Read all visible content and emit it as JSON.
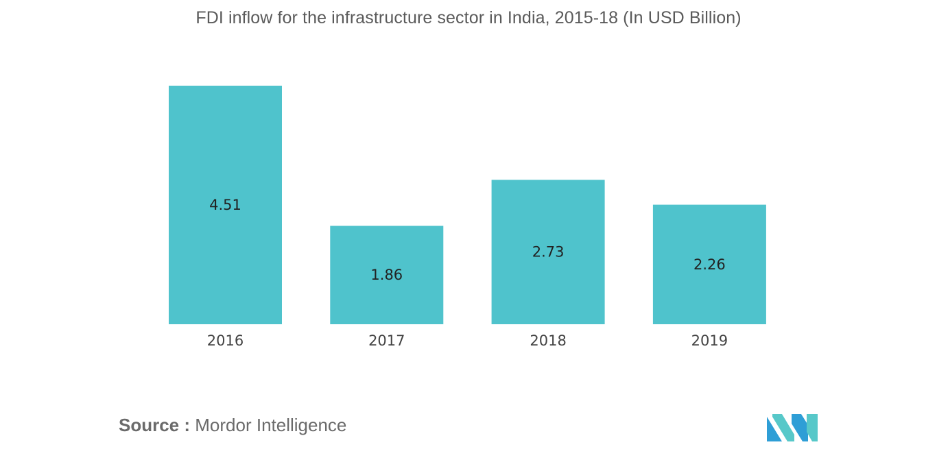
{
  "chart_data": {
    "type": "bar",
    "title": "FDI inflow for the infrastructure sector in India, 2015-18 (In USD Billion)",
    "categories": [
      "2016",
      "2017",
      "2018",
      "2019"
    ],
    "values": [
      4.51,
      1.86,
      2.73,
      2.26
    ],
    "value_labels": [
      "4.51",
      "1.86",
      "2.73",
      "2.26"
    ],
    "xlabel": "",
    "ylabel": "",
    "ylim": [
      0,
      4.51
    ],
    "grid": false,
    "legend": "none",
    "bar_color": "#4fc3cc"
  },
  "source": {
    "label": "Source :",
    "text": "Mordor Intelligence"
  },
  "logo": {
    "colors": [
      "#2e9ed6",
      "#57c8c9"
    ]
  }
}
